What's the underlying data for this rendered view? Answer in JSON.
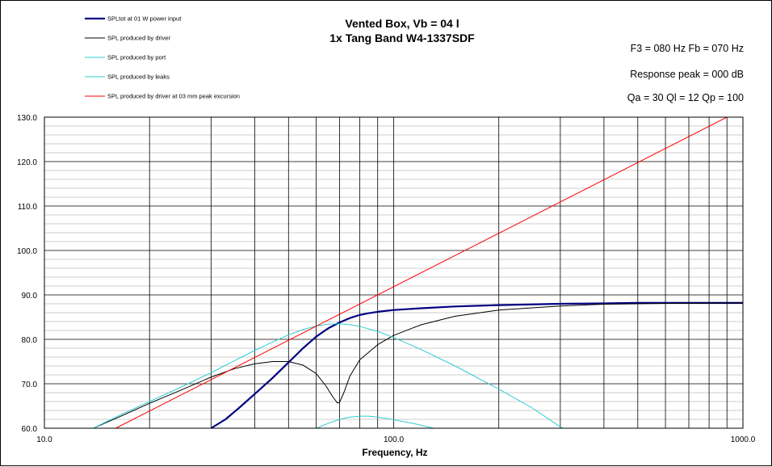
{
  "chart_data": {
    "type": "line",
    "title_lines": [
      "Vented Box, Vb = 04 l",
      "1x Tang Band W4-1337SDF"
    ],
    "info_lines": [
      "F3 = 080  Hz  Fb = 070  Hz",
      "Response  peak = 000  dB",
      "Qa = 30  Ql = 12  Qp = 100"
    ],
    "xlabel": "Frequency, Hz",
    "ylabel": "",
    "xscale": "log",
    "xlim": [
      10,
      1000
    ],
    "ylim": [
      60,
      130
    ],
    "x_tick_labels": [
      {
        "value": 10,
        "label": "10.0"
      },
      {
        "value": 100,
        "label": "100.0"
      },
      {
        "value": 1000,
        "label": "1000.0"
      }
    ],
    "y_tick_labels": [
      "60.0",
      "70.0",
      "80.0",
      "90.0",
      "100.0",
      "110.0",
      "120.0",
      "130.0"
    ],
    "grid": true,
    "legend_position": "top-left",
    "series": [
      {
        "name": "SPLtot at 01 W power input",
        "color": "#000080",
        "width": 2.2,
        "points": [
          [
            30,
            60
          ],
          [
            33,
            62
          ],
          [
            36,
            64.5
          ],
          [
            40,
            67.7
          ],
          [
            45,
            71.3
          ],
          [
            50,
            74.8
          ],
          [
            55,
            78
          ],
          [
            60,
            80.6
          ],
          [
            65,
            82.5
          ],
          [
            70,
            83.8
          ],
          [
            75,
            84.8
          ],
          [
            80,
            85.5
          ],
          [
            85,
            85.9
          ],
          [
            90,
            86.2
          ],
          [
            100,
            86.6
          ],
          [
            120,
            87
          ],
          [
            150,
            87.4
          ],
          [
            200,
            87.7
          ],
          [
            300,
            88
          ],
          [
            400,
            88.1
          ],
          [
            500,
            88.2
          ],
          [
            700,
            88.2
          ],
          [
            1000,
            88.2
          ]
        ]
      },
      {
        "name": "SPL produced by driver",
        "color": "#000000",
        "width": 1,
        "points": [
          [
            13.8,
            60
          ],
          [
            16,
            62.2
          ],
          [
            20,
            65.6
          ],
          [
            25,
            68.8
          ],
          [
            30,
            71.5
          ],
          [
            35,
            73.4
          ],
          [
            40,
            74.5
          ],
          [
            45,
            75
          ],
          [
            50,
            75
          ],
          [
            55,
            74.2
          ],
          [
            60,
            72.3
          ],
          [
            64,
            69.5
          ],
          [
            67,
            67
          ],
          [
            69,
            65.7
          ],
          [
            70,
            65.8
          ],
          [
            72,
            68
          ],
          [
            75,
            71.8
          ],
          [
            80,
            75.4
          ],
          [
            90,
            78.8
          ],
          [
            100,
            80.9
          ],
          [
            120,
            83.3
          ],
          [
            150,
            85.2
          ],
          [
            200,
            86.6
          ],
          [
            300,
            87.5
          ],
          [
            400,
            87.9
          ],
          [
            600,
            88.1
          ],
          [
            1000,
            88.2
          ]
        ]
      },
      {
        "name": "SPL produced by port",
        "color": "#33CCCC",
        "width": 1,
        "points": [
          [
            13.8,
            60
          ],
          [
            16,
            62.5
          ],
          [
            20,
            66
          ],
          [
            25,
            69.5
          ],
          [
            30,
            72.5
          ],
          [
            35,
            75.2
          ],
          [
            40,
            77.5
          ],
          [
            45,
            79.4
          ],
          [
            50,
            81
          ],
          [
            55,
            82.2
          ],
          [
            60,
            83
          ],
          [
            65,
            83.4
          ],
          [
            70,
            83.5
          ],
          [
            75,
            83.3
          ],
          [
            80,
            82.9
          ],
          [
            90,
            81.8
          ],
          [
            100,
            80.4
          ],
          [
            120,
            77.7
          ],
          [
            150,
            74
          ],
          [
            200,
            68.8
          ],
          [
            250,
            64.5
          ],
          [
            300,
            60.3
          ],
          [
            305,
            60
          ]
        ]
      },
      {
        "name": "SPL produced by leaks",
        "color": "#33CCCC",
        "width": 1,
        "points": [
          [
            60,
            60
          ],
          [
            65,
            61.1
          ],
          [
            70,
            62
          ],
          [
            75,
            62.5
          ],
          [
            80,
            62.7
          ],
          [
            85,
            62.7
          ],
          [
            90,
            62.5
          ],
          [
            100,
            61.9
          ],
          [
            115,
            61
          ],
          [
            130,
            60
          ]
        ]
      },
      {
        "name": "SPL produced by driver at 03 mm peak excursion",
        "color": "#FF0000",
        "width": 1,
        "points": [
          [
            16,
            60
          ],
          [
            900,
            130
          ]
        ]
      }
    ]
  }
}
